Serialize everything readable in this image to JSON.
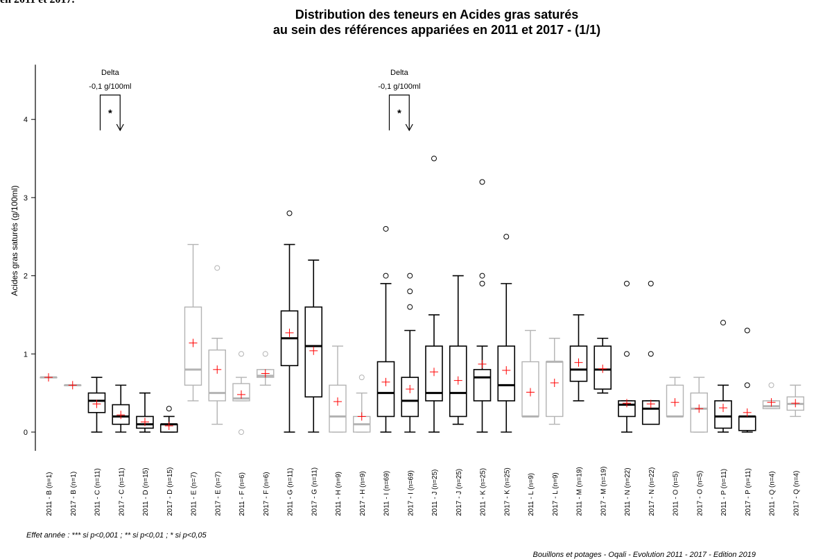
{
  "header_fragment": "en 2011 et 2017.",
  "chart_data": {
    "type": "box",
    "title_lines": [
      "Distribution des teneurs en Acides gras saturés",
      "au sein des références appariées en 2011 et 2017 - (1/1)"
    ],
    "ylabel": "Acides gras saturés (g/100ml)",
    "ylim": [
      -0.25,
      4.7
    ],
    "yticks": [
      0,
      1,
      2,
      3,
      4
    ],
    "colors": {
      "significant": "#000000",
      "not_significant": "#b3b3b3",
      "mean_marker": "#ff0000"
    },
    "groups": [
      {
        "label": "2011 - B (n=1)",
        "color": "grey",
        "q1": 0.7,
        "median": 0.7,
        "q3": 0.7,
        "whisker_low": 0.7,
        "whisker_high": 0.7,
        "mean": 0.7,
        "outliers": []
      },
      {
        "label": "2017 - B (n=1)",
        "color": "grey",
        "q1": 0.6,
        "median": 0.6,
        "q3": 0.6,
        "whisker_low": 0.6,
        "whisker_high": 0.6,
        "mean": 0.6,
        "outliers": []
      },
      {
        "label": "2011 - C (n=11)",
        "color": "black",
        "q1": 0.25,
        "median": 0.4,
        "q3": 0.5,
        "whisker_low": 0.0,
        "whisker_high": 0.7,
        "mean": 0.36,
        "outliers": []
      },
      {
        "label": "2017 - C (n=11)",
        "color": "black",
        "q1": 0.1,
        "median": 0.2,
        "q3": 0.35,
        "whisker_low": 0.0,
        "whisker_high": 0.6,
        "mean": 0.22,
        "outliers": []
      },
      {
        "label": "2011 - D (n=15)",
        "color": "black",
        "q1": 0.05,
        "median": 0.1,
        "q3": 0.2,
        "whisker_low": 0.0,
        "whisker_high": 0.5,
        "mean": 0.13,
        "outliers": []
      },
      {
        "label": "2017 - D (n=15)",
        "color": "black",
        "q1": 0.0,
        "median": 0.1,
        "q3": 0.1,
        "whisker_low": 0.0,
        "whisker_high": 0.2,
        "mean": 0.08,
        "outliers": [
          0.3
        ]
      },
      {
        "label": "2011 - E (n=7)",
        "color": "grey",
        "q1": 0.6,
        "median": 0.8,
        "q3": 1.6,
        "whisker_low": 0.4,
        "whisker_high": 2.4,
        "mean": 1.14,
        "outliers": []
      },
      {
        "label": "2017 - E (n=7)",
        "color": "grey",
        "q1": 0.4,
        "median": 0.5,
        "q3": 1.05,
        "whisker_low": 0.1,
        "whisker_high": 1.2,
        "mean": 0.8,
        "outliers": [
          2.1
        ]
      },
      {
        "label": "2011 - F (n=6)",
        "color": "grey",
        "q1": 0.4,
        "median": 0.43,
        "q3": 0.62,
        "whisker_low": 0.4,
        "whisker_high": 0.7,
        "mean": 0.48,
        "outliers": [
          1.0,
          0.0
        ]
      },
      {
        "label": "2017 - F (n=6)",
        "color": "grey",
        "q1": 0.7,
        "median": 0.72,
        "q3": 0.8,
        "whisker_low": 0.6,
        "whisker_high": 0.8,
        "mean": 0.75,
        "outliers": [
          1.0
        ]
      },
      {
        "label": "2011 - G (n=11)",
        "color": "black",
        "q1": 0.85,
        "median": 1.2,
        "q3": 1.55,
        "whisker_low": 0.0,
        "whisker_high": 2.4,
        "mean": 1.27,
        "outliers": [
          2.8
        ]
      },
      {
        "label": "2017 - G (n=11)",
        "color": "black",
        "q1": 0.45,
        "median": 1.1,
        "q3": 1.6,
        "whisker_low": 0.0,
        "whisker_high": 2.2,
        "mean": 1.04,
        "outliers": []
      },
      {
        "label": "2011 - H (n=9)",
        "color": "grey",
        "q1": 0.0,
        "median": 0.2,
        "q3": 0.6,
        "whisker_low": 0.0,
        "whisker_high": 1.1,
        "mean": 0.39,
        "outliers": []
      },
      {
        "label": "2017 - H (n=9)",
        "color": "grey",
        "q1": 0.0,
        "median": 0.1,
        "q3": 0.2,
        "whisker_low": 0.0,
        "whisker_high": 0.5,
        "mean": 0.2,
        "outliers": [
          0.7
        ]
      },
      {
        "label": "2011 - I (n=69)",
        "color": "black",
        "q1": 0.2,
        "median": 0.5,
        "q3": 0.9,
        "whisker_low": 0.0,
        "whisker_high": 1.9,
        "mean": 0.64,
        "outliers": [
          2.0,
          2.6
        ]
      },
      {
        "label": "2017 - I (n=69)",
        "color": "black",
        "q1": 0.2,
        "median": 0.4,
        "q3": 0.7,
        "whisker_low": 0.0,
        "whisker_high": 1.3,
        "mean": 0.55,
        "outliers": [
          1.6,
          1.8,
          2.0
        ]
      },
      {
        "label": "2011 - J (n=25)",
        "color": "black",
        "q1": 0.4,
        "median": 0.5,
        "q3": 1.1,
        "whisker_low": 0.0,
        "whisker_high": 1.5,
        "mean": 0.77,
        "outliers": [
          3.5
        ]
      },
      {
        "label": "2017 - J (n=25)",
        "color": "black",
        "q1": 0.2,
        "median": 0.5,
        "q3": 1.1,
        "whisker_low": 0.1,
        "whisker_high": 2.0,
        "mean": 0.66,
        "outliers": []
      },
      {
        "label": "2011 - K (n=25)",
        "color": "black",
        "q1": 0.4,
        "median": 0.7,
        "q3": 0.8,
        "whisker_low": 0.0,
        "whisker_high": 1.1,
        "mean": 0.87,
        "outliers": [
          1.9,
          2.0,
          3.2
        ]
      },
      {
        "label": "2017 - K (n=25)",
        "color": "black",
        "q1": 0.4,
        "median": 0.6,
        "q3": 1.1,
        "whisker_low": 0.0,
        "whisker_high": 1.9,
        "mean": 0.79,
        "outliers": [
          2.5
        ]
      },
      {
        "label": "2011 - L (n=9)",
        "color": "grey",
        "q1": 0.2,
        "median": 0.2,
        "q3": 0.9,
        "whisker_low": 0.2,
        "whisker_high": 1.3,
        "mean": 0.51,
        "outliers": []
      },
      {
        "label": "2017 - L (n=9)",
        "color": "grey",
        "q1": 0.2,
        "median": 0.9,
        "q3": 0.9,
        "whisker_low": 0.1,
        "whisker_high": 1.2,
        "mean": 0.63,
        "outliers": []
      },
      {
        "label": "2011 - M (n=19)",
        "color": "black",
        "q1": 0.65,
        "median": 0.8,
        "q3": 1.1,
        "whisker_low": 0.4,
        "whisker_high": 1.5,
        "mean": 0.89,
        "outliers": []
      },
      {
        "label": "2017 - M (n=19)",
        "color": "black",
        "q1": 0.55,
        "median": 0.8,
        "q3": 1.1,
        "whisker_low": 0.5,
        "whisker_high": 1.2,
        "mean": 0.81,
        "outliers": []
      },
      {
        "label": "2011 - N (n=22)",
        "color": "black",
        "q1": 0.2,
        "median": 0.35,
        "q3": 0.4,
        "whisker_low": 0.0,
        "whisker_high": 0.4,
        "mean": 0.37,
        "outliers": [
          1.0,
          1.9
        ]
      },
      {
        "label": "2017 - N (n=22)",
        "color": "black",
        "q1": 0.1,
        "median": 0.3,
        "q3": 0.4,
        "whisker_low": 0.1,
        "whisker_high": 0.4,
        "mean": 0.36,
        "outliers": [
          1.0,
          1.9
        ]
      },
      {
        "label": "2011 - O (n=5)",
        "color": "grey",
        "q1": 0.2,
        "median": 0.2,
        "q3": 0.6,
        "whisker_low": 0.2,
        "whisker_high": 0.7,
        "mean": 0.38,
        "outliers": []
      },
      {
        "label": "2017 - O (n=5)",
        "color": "grey",
        "q1": 0.0,
        "median": 0.3,
        "q3": 0.5,
        "whisker_low": 0.0,
        "whisker_high": 0.7,
        "mean": 0.3,
        "outliers": []
      },
      {
        "label": "2011 - P (n=11)",
        "color": "black",
        "q1": 0.05,
        "median": 0.2,
        "q3": 0.4,
        "whisker_low": 0.0,
        "whisker_high": 0.6,
        "mean": 0.31,
        "outliers": [
          1.4
        ]
      },
      {
        "label": "2017 - P (n=11)",
        "color": "black",
        "q1": 0.02,
        "median": 0.2,
        "q3": 0.2,
        "whisker_low": 0.0,
        "whisker_high": 0.2,
        "mean": 0.25,
        "outliers": [
          0.6,
          1.3
        ]
      },
      {
        "label": "2011 - Q (n=4)",
        "color": "grey",
        "q1": 0.3,
        "median": 0.33,
        "q3": 0.4,
        "whisker_low": 0.3,
        "whisker_high": 0.4,
        "mean": 0.38,
        "outliers": [
          0.6
        ]
      },
      {
        "label": "2017 - Q (n=4)",
        "color": "grey",
        "q1": 0.28,
        "median": 0.36,
        "q3": 0.45,
        "whisker_low": 0.2,
        "whisker_high": 0.6,
        "mean": 0.37,
        "outliers": []
      }
    ],
    "annotations": [
      {
        "pair_start": 2,
        "label": "Delta",
        "value": "-0,1 g/100ml",
        "significance": "*"
      },
      {
        "pair_start": 14,
        "label": "Delta",
        "value": "-0,1 g/100ml",
        "significance": "*"
      }
    ]
  },
  "footnote": "Effet année : *** si p<0,001 ; ** si p<0,01 ; * si p<0,05",
  "source": "Bouillons et potages - Oqali - Evolution 2011 - 2017 - Edition 2019"
}
